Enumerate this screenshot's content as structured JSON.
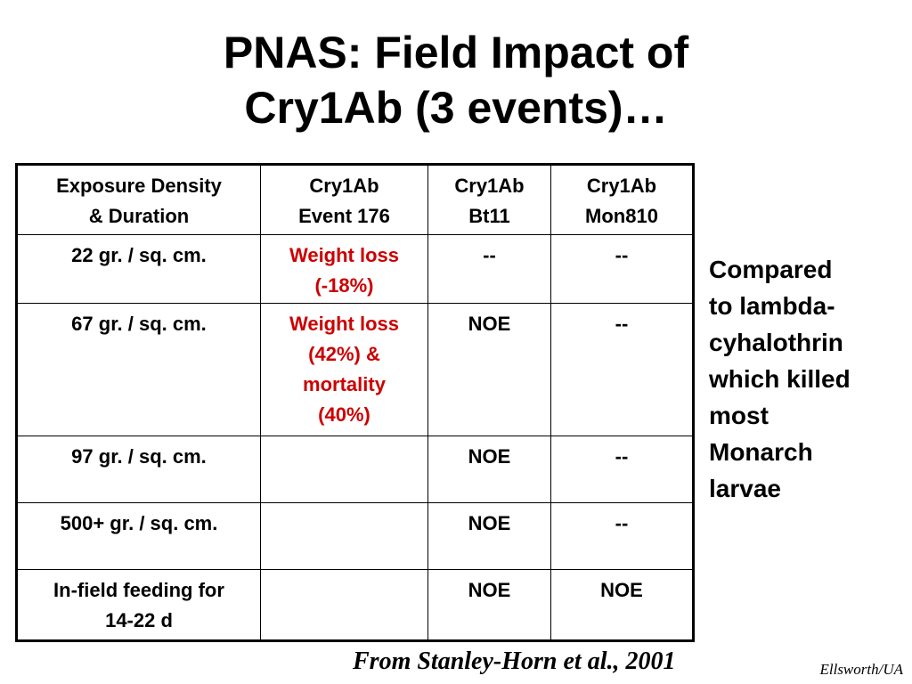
{
  "title": {
    "line1": "PNAS: Field Impact of",
    "line2": "Cry1Ab (3 events)…"
  },
  "table": {
    "headers": [
      [
        "Exposure Density",
        "& Duration"
      ],
      [
        "Cry1Ab",
        "Event 176"
      ],
      [
        "Cry1Ab",
        "Bt11"
      ],
      [
        "Cry1Ab",
        "Mon810"
      ]
    ],
    "rows": [
      {
        "exposure": [
          "22 gr. / sq. cm."
        ],
        "event176": [
          "Weight loss",
          "(-18%)"
        ],
        "bt11": [
          "--"
        ],
        "mon810": [
          "--"
        ]
      },
      {
        "exposure": [
          "67 gr. / sq. cm."
        ],
        "event176": [
          "Weight loss",
          "(42%) &",
          "mortality",
          "(40%)"
        ],
        "bt11": [
          "NOE"
        ],
        "mon810": [
          "--"
        ]
      },
      {
        "exposure": [
          "97 gr. / sq. cm."
        ],
        "event176": [],
        "bt11": [
          "NOE"
        ],
        "mon810": [
          "--"
        ]
      },
      {
        "exposure": [
          "500+ gr. / sq. cm."
        ],
        "event176": [],
        "bt11": [
          "NOE"
        ],
        "mon810": [
          "--"
        ]
      },
      {
        "exposure": [
          "In-field feeding for",
          "14-22 d"
        ],
        "event176": [],
        "bt11": [
          "NOE"
        ],
        "mon810": [
          "NOE"
        ]
      }
    ]
  },
  "side_note": "Compared\nto lambda-\ncyhalothrin\nwhich killed\nmost\nMonarch\nlarvae",
  "source": "From Stanley-Horn et al., 2001",
  "credit": "Ellsworth/UA",
  "colors": {
    "highlight_text": "#cc0000",
    "text": "#000000",
    "background": "#ffffff"
  }
}
